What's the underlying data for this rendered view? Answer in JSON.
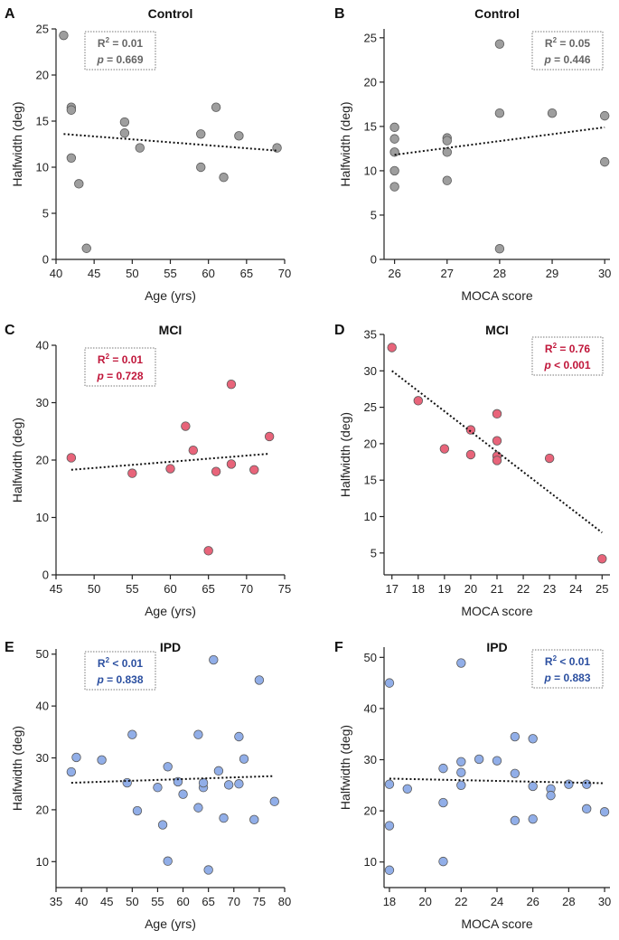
{
  "chart_data": [
    {
      "panel": "A",
      "title": "Control",
      "type": "scatter",
      "xlabel": "Age (yrs)",
      "ylabel": "Halfwidth (deg)",
      "xlim": [
        40,
        70
      ],
      "ylim": [
        0,
        25
      ],
      "xticks": [
        40,
        45,
        50,
        55,
        60,
        65,
        70
      ],
      "yticks": [
        0,
        5,
        10,
        15,
        20,
        25
      ],
      "color": "#9e9e9e",
      "x": [
        41,
        42,
        42,
        42,
        43,
        44,
        49,
        49,
        51,
        59,
        59,
        61,
        62,
        64,
        69
      ],
      "y": [
        24.3,
        16.5,
        16.2,
        11.0,
        8.2,
        1.2,
        14.9,
        13.7,
        12.1,
        13.6,
        10.0,
        16.5,
        8.9,
        13.4,
        12.1
      ],
      "fit": {
        "x": [
          41,
          69
        ],
        "y": [
          13.6,
          11.8
        ]
      },
      "stats": {
        "r2_label": "R",
        "r2_sup": "2",
        "r2_value": " = 0.01",
        "p_label": "p",
        "p_value": " = 0.669",
        "color": "#666666"
      },
      "stat_pos": "top-left"
    },
    {
      "panel": "B",
      "title": "Control",
      "type": "scatter",
      "xlabel": "MOCA score",
      "ylabel": "Halfwidth (deg)",
      "xlim": [
        25.8,
        30.1
      ],
      "ylim": [
        0,
        26
      ],
      "xticks": [
        26,
        27,
        28,
        29,
        30
      ],
      "yticks": [
        0,
        5,
        10,
        15,
        20,
        25
      ],
      "color": "#9e9e9e",
      "x": [
        26,
        26,
        26,
        26,
        26,
        27,
        27,
        27,
        27,
        28,
        28,
        28,
        29,
        30,
        30
      ],
      "y": [
        14.9,
        13.6,
        12.1,
        10.0,
        8.2,
        13.7,
        13.4,
        12.1,
        8.9,
        24.3,
        16.5,
        1.2,
        16.5,
        16.2,
        11.0
      ],
      "fit": {
        "x": [
          26,
          30
        ],
        "y": [
          11.8,
          14.9
        ]
      },
      "stats": {
        "r2_label": "R",
        "r2_sup": "2",
        "r2_value": " = 0.05",
        "p_label": "p",
        "p_value": " = 0.446",
        "color": "#666666"
      },
      "stat_pos": "top-right"
    },
    {
      "panel": "C",
      "title": "MCI",
      "type": "scatter",
      "xlabel": "Age (yrs)",
      "ylabel": "Halfwidth (deg)",
      "xlim": [
        45,
        75
      ],
      "ylim": [
        0,
        40
      ],
      "xticks": [
        45,
        50,
        55,
        60,
        65,
        70,
        75
      ],
      "yticks": [
        0,
        10,
        20,
        30,
        40
      ],
      "color": "#e8647a",
      "x": [
        47,
        55,
        60,
        62,
        63,
        65,
        66,
        68,
        68,
        71,
        73
      ],
      "y": [
        20.4,
        17.7,
        18.5,
        25.9,
        21.7,
        4.2,
        18.0,
        33.2,
        19.3,
        18.3,
        24.1
      ],
      "fit": {
        "x": [
          47,
          73
        ],
        "y": [
          18.3,
          21.1
        ]
      },
      "stats": {
        "r2_label": "R",
        "r2_sup": "2",
        "r2_value": " = 0.01",
        "p_label": "p",
        "p_value": " = 0.728",
        "color": "#c0163a"
      },
      "stat_pos": "top-left"
    },
    {
      "panel": "D",
      "title": "MCI",
      "type": "scatter",
      "xlabel": "MOCA score",
      "ylabel": "Halfwidth (deg)",
      "xlim": [
        16.7,
        25.3
      ],
      "ylim": [
        2,
        35
      ],
      "xticks": [
        17,
        18,
        19,
        20,
        21,
        22,
        23,
        24,
        25
      ],
      "yticks": [
        5,
        10,
        15,
        20,
        25,
        30,
        35
      ],
      "color": "#e8647a",
      "x": [
        17,
        18,
        19,
        20,
        20,
        21,
        21,
        21,
        21,
        23,
        25
      ],
      "y": [
        33.2,
        25.9,
        19.3,
        21.9,
        18.5,
        24.1,
        20.4,
        18.3,
        17.7,
        18.0,
        4.2
      ],
      "fit": {
        "x": [
          17,
          25
        ],
        "y": [
          30.0,
          7.8
        ]
      },
      "stats": {
        "r2_label": "R",
        "r2_sup": "2",
        "r2_value": " = 0.76",
        "p_label": "p",
        "p_value": " < 0.001",
        "color": "#c0163a"
      },
      "stat_pos": "top-right"
    },
    {
      "panel": "E",
      "title": "IPD",
      "type": "scatter",
      "xlabel": "Age (yrs)",
      "ylabel": "Halfwidth (deg)",
      "xlim": [
        35,
        80
      ],
      "ylim": [
        5,
        51
      ],
      "xticks": [
        35,
        40,
        45,
        50,
        55,
        60,
        65,
        70,
        75,
        80
      ],
      "yticks": [
        10,
        20,
        30,
        40,
        50
      ],
      "color": "#91aee8",
      "x": [
        38,
        39,
        44,
        49,
        50,
        51,
        55,
        56,
        57,
        57,
        59,
        60,
        63,
        63,
        64,
        64,
        65,
        66,
        67,
        68,
        69,
        71,
        71,
        72,
        74,
        75,
        78
      ],
      "y": [
        27.3,
        30.1,
        29.6,
        25.2,
        34.5,
        19.8,
        24.3,
        17.1,
        28.3,
        10.1,
        25.4,
        23.0,
        34.5,
        20.4,
        24.3,
        25.2,
        8.4,
        48.9,
        27.5,
        18.4,
        24.8,
        34.1,
        25.0,
        29.8,
        18.1,
        45.0,
        21.6
      ],
      "fit": {
        "x": [
          38,
          78
        ],
        "y": [
          25.2,
          26.5
        ]
      },
      "stats": {
        "r2_label": "R",
        "r2_sup": "2",
        "r2_value": " < 0.01",
        "p_label": "p",
        "p_value": " = 0.838",
        "color": "#2b4fa0"
      },
      "stat_pos": "top-left"
    },
    {
      "panel": "F",
      "title": "IPD",
      "type": "scatter",
      "xlabel": "MOCA score",
      "ylabel": "Halfwidth (deg)",
      "xlim": [
        17.7,
        30.3
      ],
      "ylim": [
        5,
        52
      ],
      "xticks": [
        18,
        20,
        22,
        24,
        26,
        28,
        30
      ],
      "yticks": [
        10,
        20,
        30,
        40,
        50
      ],
      "color": "#91aee8",
      "x": [
        18,
        18,
        18,
        18,
        19,
        21,
        21,
        21,
        22,
        22,
        22,
        22,
        23,
        24,
        25,
        25,
        25,
        26,
        26,
        26,
        27,
        27,
        28,
        29,
        29,
        30
      ],
      "y": [
        45.0,
        25.2,
        17.1,
        8.4,
        24.3,
        28.3,
        21.6,
        10.1,
        48.9,
        29.6,
        27.5,
        25.0,
        30.1,
        29.8,
        34.5,
        27.3,
        18.1,
        34.1,
        24.8,
        18.4,
        24.3,
        23.0,
        25.2,
        25.2,
        20.4,
        19.8
      ],
      "fit": {
        "x": [
          18,
          30
        ],
        "y": [
          26.3,
          25.4
        ]
      },
      "stats": {
        "r2_label": "R",
        "r2_sup": "2",
        "r2_value": " < 0.01",
        "p_label": "p",
        "p_value": " = 0.883",
        "color": "#2b4fa0"
      },
      "stat_pos": "top-right"
    }
  ]
}
